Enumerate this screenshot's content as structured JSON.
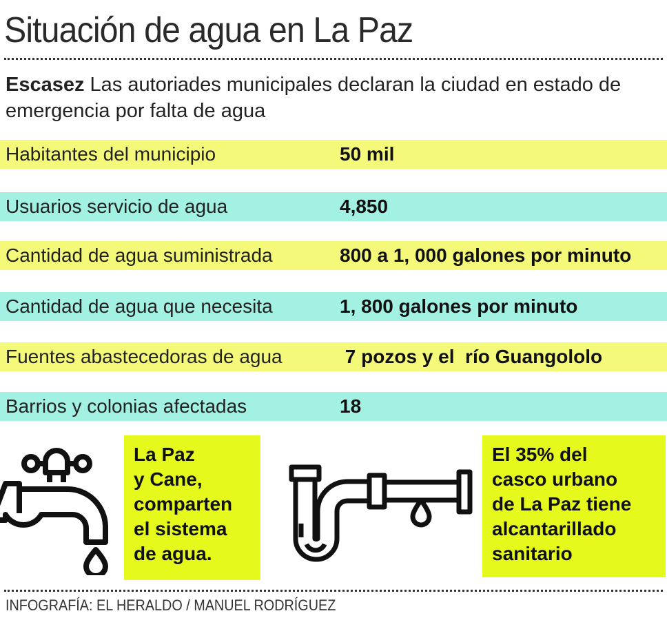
{
  "title": "Situación de agua en La Paz",
  "intro": {
    "lead": "Escasez",
    "text": " Las autoriades municipales declaran la ciudad en estado de emergencia por falta de agua"
  },
  "colors": {
    "yellow_row": "#f5f97a",
    "teal_row": "#a2f1e2",
    "highlight_box": "#e6f91c"
  },
  "rows": [
    {
      "label": "Habitantes del municipio",
      "value": "50 mil"
    },
    {
      "label": "Usuarios servicio de agua",
      "value": "4,850"
    },
    {
      "label": "Cantidad de agua suministrada",
      "value": "800 a 1, 000 galones por minuto"
    },
    {
      "label": "Cantidad de agua que necesita",
      "value": "1, 800 galones por minuto"
    },
    {
      "label": "Fuentes abastecedoras de agua",
      "value": " 7 pozos y el  río Guangololo"
    },
    {
      "label": "Barrios y colonias afectadas",
      "value": "18"
    }
  ],
  "boxes": [
    {
      "icon": "faucet-icon",
      "lines": [
        "La Paz",
        "y Cane,",
        "comparten",
        "el sistema",
        "de agua."
      ]
    },
    {
      "icon": "pipe-icon",
      "lines": [
        "El 35% del",
        "casco urbano",
        "de La Paz tiene",
        "alcantarillado",
        "sanitario"
      ]
    }
  ],
  "credit": "INFOGRAFÍA: EL HERALDO / MANUEL RODRÍGUEZ"
}
